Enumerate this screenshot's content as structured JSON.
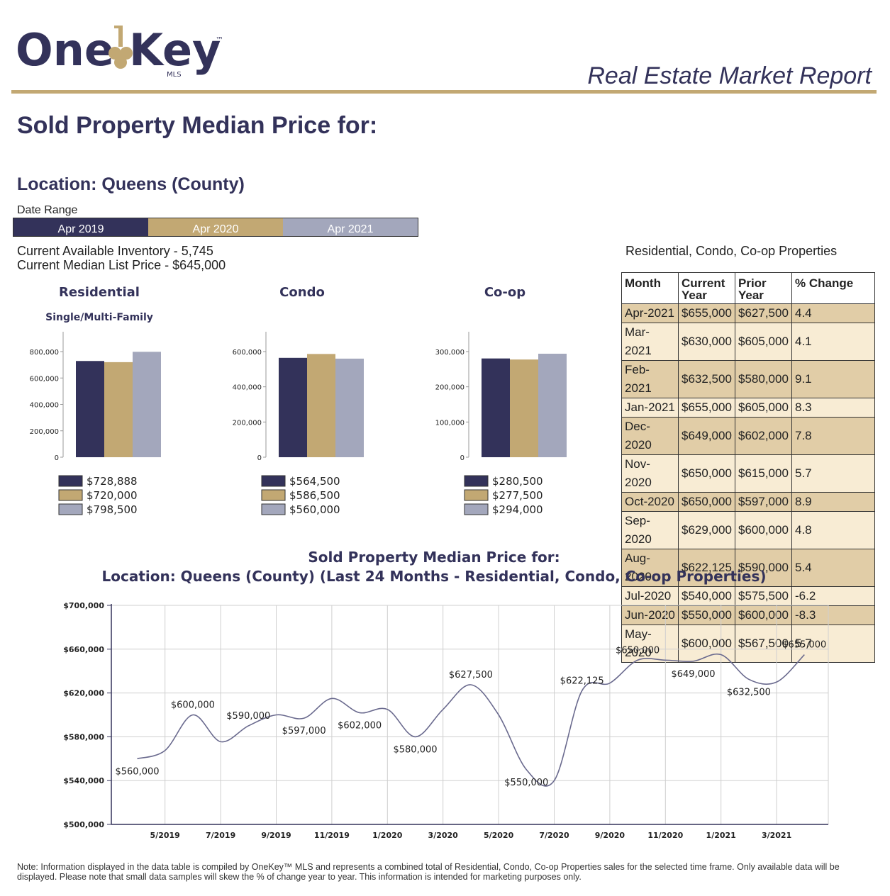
{
  "header": {
    "logo_text": "OneKey™ MLS",
    "report_title": "Real Estate Market Report"
  },
  "page_title": "Sold Property Median Price for:",
  "location": "Location: Queens (County)",
  "date_range": {
    "label": "Date Range",
    "segments": [
      {
        "label": "Apr 2019",
        "color": "#33325a"
      },
      {
        "label": "Apr 2020",
        "color": "#c2a873"
      },
      {
        "label": "Apr 2021",
        "color": "#a3a7bc"
      }
    ]
  },
  "inventory": {
    "available": "Current Available Inventory - 5,745",
    "median_list": "Current Median List Price - $645,000"
  },
  "colors": {
    "navy": "#33325a",
    "gold": "#c2a873",
    "grey": "#a3a7bc"
  },
  "table": {
    "caption": "Residential, Condo, Co-op Properties",
    "headers": [
      "Month",
      "Current Year",
      "Prior Year",
      "% Change"
    ],
    "rows": [
      [
        "Apr-2021",
        "$655,000",
        "$627,500",
        "4.4"
      ],
      [
        "Mar-2021",
        "$630,000",
        "$605,000",
        "4.1"
      ],
      [
        "Feb-2021",
        "$632,500",
        "$580,000",
        "9.1"
      ],
      [
        "Jan-2021",
        "$655,000",
        "$605,000",
        "8.3"
      ],
      [
        "Dec-2020",
        "$649,000",
        "$602,000",
        "7.8"
      ],
      [
        "Nov-2020",
        "$650,000",
        "$615,000",
        "5.7"
      ],
      [
        "Oct-2020",
        "$650,000",
        "$597,000",
        "8.9"
      ],
      [
        "Sep-2020",
        "$629,000",
        "$600,000",
        "4.8"
      ],
      [
        "Aug-2020",
        "$622,125",
        "$590,000",
        "5.4"
      ],
      [
        "Jul-2020",
        "$540,000",
        "$575,500",
        "-6.2"
      ],
      [
        "Jun-2020",
        "$550,000",
        "$600,000",
        "-8.3"
      ],
      [
        "May-2020",
        "$600,000",
        "$567,500",
        "5.7"
      ]
    ]
  },
  "chart_data": [
    {
      "type": "bar",
      "title": "Residential",
      "subtitle": "Single/Multi-Family",
      "categories": [
        "Apr 2019",
        "Apr 2020",
        "Apr 2021"
      ],
      "values": [
        728888,
        720000,
        798500
      ],
      "ylim": [
        0,
        800000
      ],
      "yticks": [
        0,
        200000,
        400000,
        600000,
        800000
      ],
      "ytick_labels": [
        "0",
        "200,000",
        "400,000",
        "600,000",
        "800,000"
      ],
      "legend": [
        "$728,888",
        "$720,000",
        "$798,500"
      ]
    },
    {
      "type": "bar",
      "title": "Condo",
      "subtitle": "",
      "categories": [
        "Apr 2019",
        "Apr 2020",
        "Apr 2021"
      ],
      "values": [
        564500,
        586500,
        560000
      ],
      "ylim": [
        0,
        600000
      ],
      "yticks": [
        0,
        200000,
        400000,
        600000
      ],
      "ytick_labels": [
        "0",
        "200,000",
        "400,000",
        "600,000"
      ],
      "legend": [
        "$564,500",
        "$586,500",
        "$560,000"
      ]
    },
    {
      "type": "bar",
      "title": "Co-op",
      "subtitle": "",
      "categories": [
        "Apr 2019",
        "Apr 2020",
        "Apr 2021"
      ],
      "values": [
        280500,
        277500,
        294000
      ],
      "ylim": [
        0,
        300000
      ],
      "yticks": [
        0,
        100000,
        200000,
        300000
      ],
      "ytick_labels": [
        "0",
        "100,000",
        "200,000",
        "300,000"
      ],
      "legend": [
        "$280,500",
        "$277,500",
        "$294,000"
      ]
    },
    {
      "type": "line",
      "title": "Sold Property Median Price for:",
      "subtitle": "Location: Queens (County) (Last 24 Months - Residential, Condo, Co-op Properties)",
      "x": [
        "4/2019",
        "5/2019",
        "6/2019",
        "7/2019",
        "8/2019",
        "9/2019",
        "10/2019",
        "11/2019",
        "12/2019",
        "1/2020",
        "2/2020",
        "3/2020",
        "4/2020",
        "5/2020",
        "6/2020",
        "7/2020",
        "8/2020",
        "9/2020",
        "10/2020",
        "11/2020",
        "12/2020",
        "1/2021",
        "2/2021",
        "3/2021",
        "4/2021"
      ],
      "values": [
        560000,
        567500,
        600000,
        575500,
        590000,
        600000,
        597000,
        615000,
        602000,
        605000,
        580000,
        605000,
        627500,
        600000,
        550000,
        540000,
        622125,
        629000,
        650000,
        650000,
        649000,
        655000,
        632500,
        630000,
        655000
      ],
      "ylim": [
        500000,
        700000
      ],
      "yticks": [
        500000,
        540000,
        580000,
        620000,
        660000,
        700000
      ],
      "ytick_labels": [
        "$500,000",
        "$540,000",
        "$580,000",
        "$620,000",
        "$660,000",
        "$700,000"
      ],
      "xtick_labels": [
        "5/2019",
        "7/2019",
        "9/2019",
        "11/2019",
        "1/2020",
        "3/2020",
        "5/2020",
        "7/2020",
        "9/2020",
        "11/2020",
        "1/2021",
        "3/2021"
      ],
      "point_labels": [
        {
          "index": 0,
          "text": "$560,000"
        },
        {
          "index": 2,
          "text": "$600,000"
        },
        {
          "index": 4,
          "text": "$590,000"
        },
        {
          "index": 6,
          "text": "$597,000"
        },
        {
          "index": 8,
          "text": "$602,000"
        },
        {
          "index": 10,
          "text": "$580,000"
        },
        {
          "index": 12,
          "text": "$627,500"
        },
        {
          "index": 14,
          "text": "$550,000"
        },
        {
          "index": 16,
          "text": "$622,125"
        },
        {
          "index": 18,
          "text": "$650,000"
        },
        {
          "index": 20,
          "text": "$649,000"
        },
        {
          "index": 22,
          "text": "$632,500"
        },
        {
          "index": 24,
          "text": "$655,000"
        }
      ],
      "grid": true
    }
  ],
  "note": "Note: Information displayed in the data table is compiled by OneKey™ MLS and represents a combined total of Residential, Condo, Co-op Properties sales for the selected time frame. Only available data will be displayed. Please note that small data samples will skew the % of change year to year. This information is intended for marketing purposes only."
}
